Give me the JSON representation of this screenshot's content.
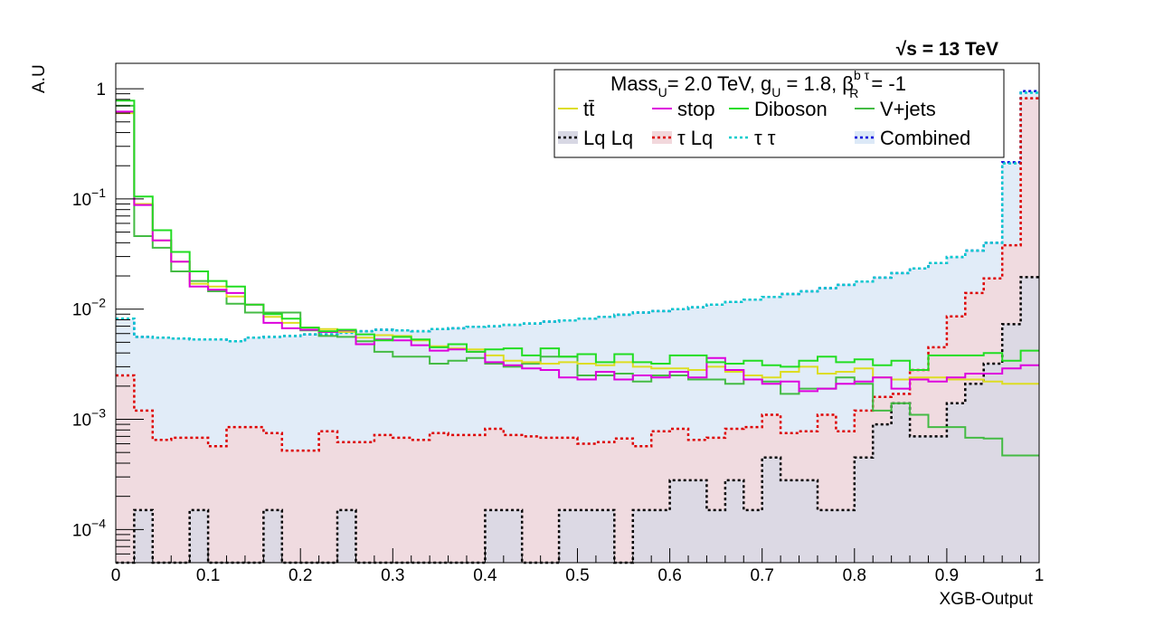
{
  "energy_label": "√s = 13 TeV",
  "chart_data": {
    "type": "histogram",
    "xlabel": "XGB-Output",
    "ylabel": "A.U",
    "xlim": [
      0,
      1
    ],
    "ylim": [
      5e-05,
      1.7
    ],
    "yscale": "log",
    "x_ticks": [
      "0",
      "0.1",
      "0.2",
      "0.3",
      "0.4",
      "0.5",
      "0.6",
      "0.7",
      "0.8",
      "0.9",
      "1"
    ],
    "y_ticks": [
      {
        "value": 0.0001,
        "base": "10",
        "exp": "−4"
      },
      {
        "value": 0.001,
        "base": "10",
        "exp": "−3"
      },
      {
        "value": 0.01,
        "base": "10",
        "exp": "−2"
      },
      {
        "value": 0.1,
        "base": "10",
        "exp": "−1"
      },
      {
        "value": 1,
        "base": "1",
        "exp": ""
      }
    ],
    "legend_header": {
      "text": "Mass",
      "sub1": "U",
      "text2": "= 2.0 TeV, g",
      "sub2": "U",
      "text3": " = 1.8, β",
      "sup3": "b τ",
      "sub3": "R",
      "text4": " = -1"
    },
    "legend_placement": "top-right",
    "bin_edges": [
      0,
      0.02,
      0.04,
      0.06,
      0.08,
      0.1,
      0.12,
      0.14,
      0.16,
      0.18,
      0.2,
      0.22,
      0.24,
      0.26,
      0.28,
      0.3,
      0.32,
      0.34,
      0.36,
      0.38,
      0.4,
      0.42,
      0.44,
      0.46,
      0.48,
      0.5,
      0.52,
      0.54,
      0.56,
      0.58,
      0.6,
      0.62,
      0.64,
      0.66,
      0.68,
      0.7,
      0.72,
      0.74,
      0.76,
      0.78,
      0.8,
      0.82,
      0.84,
      0.86,
      0.88,
      0.9,
      0.92,
      0.94,
      0.96,
      0.98,
      1.0
    ],
    "series": [
      {
        "name": "Combined",
        "legend": "Combined",
        "color": "#0000dd",
        "style": "dotted",
        "fill": "#dce9f7",
        "values": [
          0.0082,
          0.0056,
          0.0055,
          0.0054,
          0.0053,
          0.0053,
          0.0051,
          0.0055,
          0.0056,
          0.0057,
          0.0059,
          0.0059,
          0.0061,
          0.0063,
          0.0065,
          0.0064,
          0.0063,
          0.0066,
          0.0067,
          0.0069,
          0.007,
          0.0072,
          0.0074,
          0.0077,
          0.0079,
          0.0082,
          0.0085,
          0.0089,
          0.0093,
          0.0096,
          0.01,
          0.0104,
          0.011,
          0.0116,
          0.0122,
          0.0129,
          0.0137,
          0.0145,
          0.0155,
          0.0166,
          0.0178,
          0.0193,
          0.0212,
          0.0234,
          0.0262,
          0.0297,
          0.034,
          0.04,
          0.215,
          0.95
        ]
      },
      {
        "name": "Lq Lq",
        "legend": "Lq Lq",
        "color": "#000000",
        "style": "dotted",
        "fill": "#d8d8e4",
        "values": [
          0,
          0.00015,
          0,
          0,
          0.00015,
          0,
          0,
          0,
          0.00015,
          0,
          0,
          0,
          0.00015,
          0,
          0,
          0,
          0,
          0,
          0,
          0,
          0.00015,
          0.00015,
          0,
          0,
          0.00015,
          0.00015,
          0.00015,
          0,
          0.00015,
          0.00015,
          0.00028,
          0.00028,
          0.00015,
          0.00028,
          0.00015,
          0.00045,
          0.00028,
          0.00028,
          0.00015,
          0.00015,
          0.00045,
          0.0009,
          0.0014,
          0.0007,
          0.0007,
          0.0014,
          0.0021,
          0.0032,
          0.0073,
          0.0195
        ]
      },
      {
        "name": "τ Lq",
        "legend": "τ Lq",
        "color": "#dd0000",
        "style": "dotted",
        "fill": "#f2d8dc",
        "values": [
          0.0025,
          0.0012,
          0.00065,
          0.00068,
          0.00068,
          0.00057,
          0.00085,
          0.00085,
          0.00075,
          0.00052,
          0.00052,
          0.00078,
          0.00062,
          0.00062,
          0.00072,
          0.00068,
          0.00065,
          0.00075,
          0.00072,
          0.00072,
          0.00082,
          0.00072,
          0.0007,
          0.00068,
          0.00068,
          0.0006,
          0.00062,
          0.00067,
          0.00057,
          0.00078,
          0.00082,
          0.00065,
          0.00068,
          0.00082,
          0.00085,
          0.0011,
          0.00075,
          0.00078,
          0.0011,
          0.00078,
          0.0012,
          0.0016,
          0.0017,
          0.0028,
          0.0045,
          0.0086,
          0.014,
          0.019,
          0.038,
          0.82
        ]
      },
      {
        "name": "τ τ",
        "legend": "τ τ",
        "color": "#00cccc",
        "style": "dotted",
        "fill": "none",
        "values": [
          0.0082,
          0.0056,
          0.0055,
          0.0054,
          0.0053,
          0.0053,
          0.0051,
          0.0055,
          0.0056,
          0.0057,
          0.0059,
          0.0059,
          0.0061,
          0.0063,
          0.0065,
          0.0064,
          0.0063,
          0.0066,
          0.0067,
          0.0069,
          0.007,
          0.0072,
          0.0074,
          0.0077,
          0.0079,
          0.0082,
          0.0085,
          0.0089,
          0.0093,
          0.0096,
          0.01,
          0.0104,
          0.011,
          0.0116,
          0.0122,
          0.0129,
          0.0137,
          0.0145,
          0.0155,
          0.0166,
          0.0178,
          0.0193,
          0.0212,
          0.0234,
          0.0262,
          0.0297,
          0.034,
          0.04,
          0.21,
          0.92
        ]
      },
      {
        "name": "tt̄",
        "legend": "tt̄",
        "color": "#dddd22",
        "style": "solid",
        "fill": "none",
        "values": [
          0.6,
          0.09,
          0.042,
          0.027,
          0.017,
          0.016,
          0.013,
          0.011,
          0.0085,
          0.0075,
          0.0068,
          0.0066,
          0.0062,
          0.0055,
          0.0058,
          0.0057,
          0.0052,
          0.0046,
          0.0044,
          0.0043,
          0.0038,
          0.0034,
          0.0033,
          0.0032,
          0.0033,
          0.0032,
          0.0031,
          0.0033,
          0.003,
          0.0029,
          0.0029,
          0.0028,
          0.003,
          0.0027,
          0.0025,
          0.0024,
          0.0027,
          0.003,
          0.0026,
          0.0027,
          0.0029,
          0.0024,
          0.0023,
          0.0024,
          0.0024,
          0.0023,
          0.0023,
          0.0022,
          0.0021,
          0.0021
        ]
      },
      {
        "name": "stop",
        "legend": "stop",
        "color": "#dd00dd",
        "style": "solid",
        "fill": "none",
        "values": [
          0.62,
          0.088,
          0.042,
          0.027,
          0.016,
          0.015,
          0.014,
          0.011,
          0.0075,
          0.0067,
          0.0065,
          0.0062,
          0.0064,
          0.0048,
          0.0053,
          0.0052,
          0.0047,
          0.0042,
          0.0043,
          0.0041,
          0.0033,
          0.0031,
          0.0029,
          0.0028,
          0.0024,
          0.0023,
          0.0027,
          0.0023,
          0.0025,
          0.0024,
          0.0027,
          0.0024,
          0.0036,
          0.0028,
          0.0023,
          0.0021,
          0.0022,
          0.0018,
          0.0019,
          0.0021,
          0.0022,
          0.0024,
          0.0019,
          0.0023,
          0.0022,
          0.0024,
          0.0026,
          0.0026,
          0.0029,
          0.0031
        ]
      },
      {
        "name": "Diboson",
        "legend": "Diboson",
        "color": "#22dd22",
        "style": "solid",
        "fill": "none",
        "values": [
          0.78,
          0.105,
          0.052,
          0.033,
          0.022,
          0.018,
          0.016,
          0.011,
          0.009,
          0.0082,
          0.0068,
          0.0063,
          0.0065,
          0.0059,
          0.0052,
          0.0056,
          0.0053,
          0.0045,
          0.0048,
          0.0041,
          0.0043,
          0.0044,
          0.0038,
          0.0044,
          0.0037,
          0.0039,
          0.0033,
          0.0039,
          0.0033,
          0.0032,
          0.0038,
          0.0038,
          0.0033,
          0.0032,
          0.0034,
          0.0031,
          0.003,
          0.0034,
          0.0037,
          0.0033,
          0.0035,
          0.0031,
          0.0034,
          0.0028,
          0.0038,
          0.0038,
          0.0038,
          0.004,
          0.0034,
          0.0042
        ]
      },
      {
        "name": "V+jets",
        "legend": "V+jets",
        "color": "#44bb44",
        "style": "solid",
        "fill": "none",
        "values": [
          0.7,
          0.046,
          0.036,
          0.022,
          0.018,
          0.0145,
          0.0112,
          0.0093,
          0.0093,
          0.0093,
          0.0064,
          0.0057,
          0.0056,
          0.0051,
          0.0041,
          0.0037,
          0.0037,
          0.0032,
          0.0034,
          0.0036,
          0.0032,
          0.003,
          0.0032,
          0.0037,
          0.0037,
          0.0025,
          0.0025,
          0.0026,
          0.0022,
          0.0025,
          0.0025,
          0.0023,
          0.0023,
          0.0021,
          0.0023,
          0.0022,
          0.0017,
          0.0019,
          0.0019,
          0.0024,
          0.0021,
          0.0012,
          0.0014,
          0.0011,
          0.00085,
          0.00085,
          0.00068,
          0.00067,
          0.00047,
          0.00047
        ]
      }
    ],
    "legend_rows": [
      [
        "tt̄",
        "stop",
        "Diboson",
        "V+jets"
      ],
      [
        "Lq Lq",
        "τ Lq",
        "τ τ",
        "Combined"
      ]
    ]
  }
}
